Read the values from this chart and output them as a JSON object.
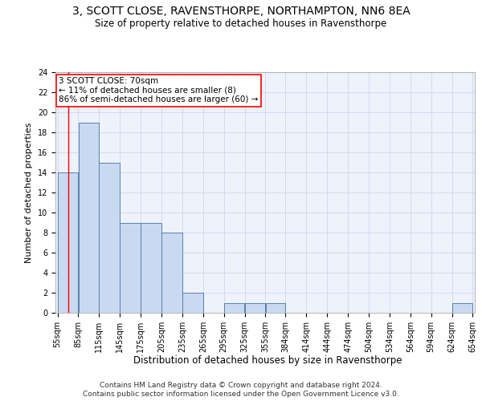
{
  "title": "3, SCOTT CLOSE, RAVENSTHORPE, NORTHAMPTON, NN6 8EA",
  "subtitle": "Size of property relative to detached houses in Ravensthorpe",
  "xlabel": "Distribution of detached houses by size in Ravensthorpe",
  "ylabel": "Number of detached properties",
  "footnote1": "Contains HM Land Registry data © Crown copyright and database right 2024.",
  "footnote2": "Contains public sector information licensed under the Open Government Licence v3.0.",
  "bins": [
    55,
    85,
    115,
    145,
    175,
    205,
    235,
    265,
    295,
    325,
    355,
    384,
    414,
    444,
    474,
    504,
    534,
    564,
    594,
    624,
    654
  ],
  "bin_labels": [
    "55sqm",
    "85sqm",
    "115sqm",
    "145sqm",
    "175sqm",
    "205sqm",
    "235sqm",
    "265sqm",
    "295sqm",
    "325sqm",
    "355sqm",
    "384sqm",
    "414sqm",
    "444sqm",
    "474sqm",
    "504sqm",
    "534sqm",
    "564sqm",
    "594sqm",
    "624sqm",
    "654sqm"
  ],
  "values": [
    14,
    19,
    15,
    9,
    9,
    8,
    2,
    0,
    1,
    1,
    1,
    0,
    0,
    0,
    0,
    0,
    0,
    0,
    0,
    1
  ],
  "bar_color": "#c9d9f0",
  "bar_edge_color": "#5580b0",
  "annotation_line1": "3 SCOTT CLOSE: 70sqm",
  "annotation_line2": "← 11% of detached houses are smaller (8)",
  "annotation_line3": "86% of semi-detached houses are larger (60) →",
  "annotation_box_color": "white",
  "annotation_box_edge_color": "red",
  "vline_x": 70,
  "vline_color": "red",
  "ylim": [
    0,
    24
  ],
  "yticks": [
    0,
    2,
    4,
    6,
    8,
    10,
    12,
    14,
    16,
    18,
    20,
    22,
    24
  ],
  "bg_color": "#eef2fb",
  "grid_color": "#c8d0e8",
  "title_fontsize": 10,
  "subtitle_fontsize": 8.5,
  "xlabel_fontsize": 8.5,
  "ylabel_fontsize": 8,
  "tick_fontsize": 7,
  "annot_fontsize": 7.5,
  "footnote_fontsize": 6.5
}
